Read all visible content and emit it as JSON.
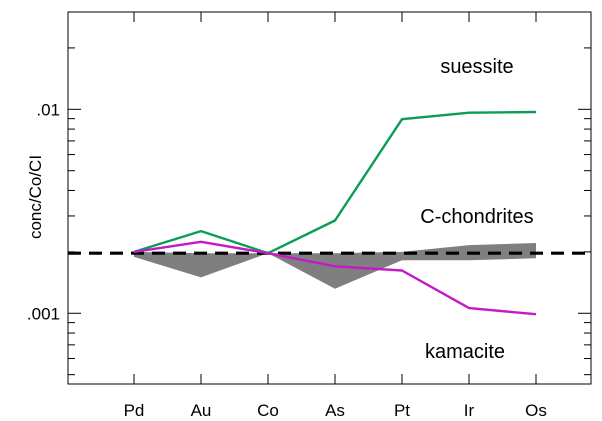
{
  "chart_data": {
    "type": "line",
    "ylabel": "conc/Co/CI",
    "yscale": "log",
    "ylim": [
      0.00045,
      0.03
    ],
    "categories": [
      "Pd",
      "Au",
      "Co",
      "As",
      "Pt",
      "Ir",
      "Os"
    ],
    "ytick_labels": [
      {
        "value": 0.01,
        "label": ".01"
      },
      {
        "value": 0.001,
        "label": ".001"
      }
    ],
    "reference_line": {
      "value": 0.00197,
      "style": "dashed"
    },
    "series": [
      {
        "name": "suessite",
        "color": "#0a9e55",
        "values": [
          0.002,
          0.00253,
          0.00197,
          0.00285,
          0.00894,
          0.00963,
          0.0097
        ]
      },
      {
        "name": "kamacite",
        "color": "#c41ac4",
        "values": [
          0.002,
          0.00224,
          0.00197,
          0.0017,
          0.00162,
          0.00106,
          0.00099
        ]
      }
    ],
    "band": {
      "name": "C-chondrites",
      "color": "#7f7f7f",
      "upper": [
        0.002,
        0.00197,
        0.00197,
        0.00197,
        0.002,
        0.00216,
        0.00221
      ],
      "lower": [
        0.00189,
        0.0015,
        0.00197,
        0.00132,
        0.00182,
        0.00182,
        0.00186
      ]
    },
    "annotations": [
      {
        "text": "suessite",
        "series": "suessite"
      },
      {
        "text": "C-chondrites",
        "series": "C-chondrites"
      },
      {
        "text": "kamacite",
        "series": "kamacite"
      }
    ],
    "grid": false,
    "legend": "none"
  }
}
